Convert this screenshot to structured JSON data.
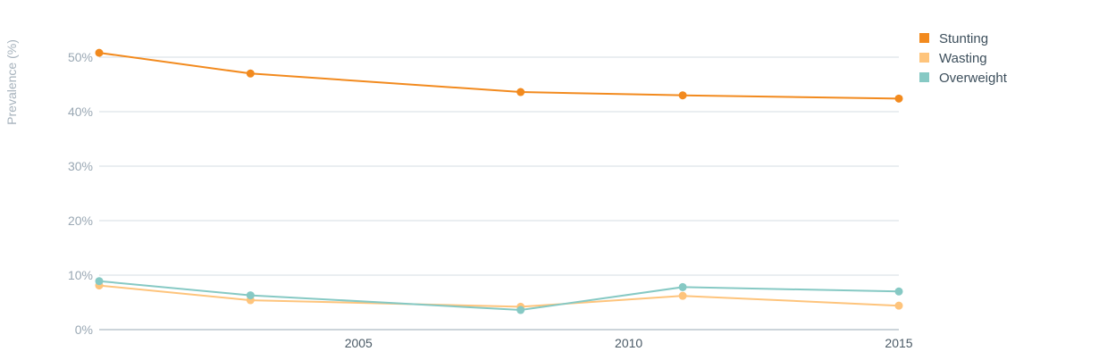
{
  "chart_data": {
    "type": "line",
    "title": "",
    "xlabel": "",
    "ylabel": "Prevalence (%)",
    "xlim": [
      2000.2,
      2015
    ],
    "ylim": [
      0,
      50
    ],
    "x_ticks": [
      2005,
      2010,
      2015
    ],
    "y_ticks": [
      0,
      10,
      20,
      30,
      40,
      50
    ],
    "y_tick_labels": [
      "0%",
      "10%",
      "20%",
      "30%",
      "40%",
      "50%"
    ],
    "grid": true,
    "legend_position": "top-right",
    "series": [
      {
        "name": "Stunting",
        "color": "#f28a1e",
        "x": [
          2000.2,
          2003,
          2008,
          2011,
          2015
        ],
        "values": [
          50.8,
          47.0,
          43.6,
          43.0,
          42.4
        ]
      },
      {
        "name": "Wasting",
        "color": "#fec47c",
        "x": [
          2000.2,
          2003,
          2008,
          2011,
          2015
        ],
        "values": [
          8.1,
          5.4,
          4.2,
          6.2,
          4.4
        ]
      },
      {
        "name": "Overweight",
        "color": "#86c9c4",
        "x": [
          2000.2,
          2003,
          2008,
          2011,
          2015
        ],
        "values": [
          8.9,
          6.3,
          3.6,
          7.8,
          7.0
        ]
      }
    ]
  }
}
